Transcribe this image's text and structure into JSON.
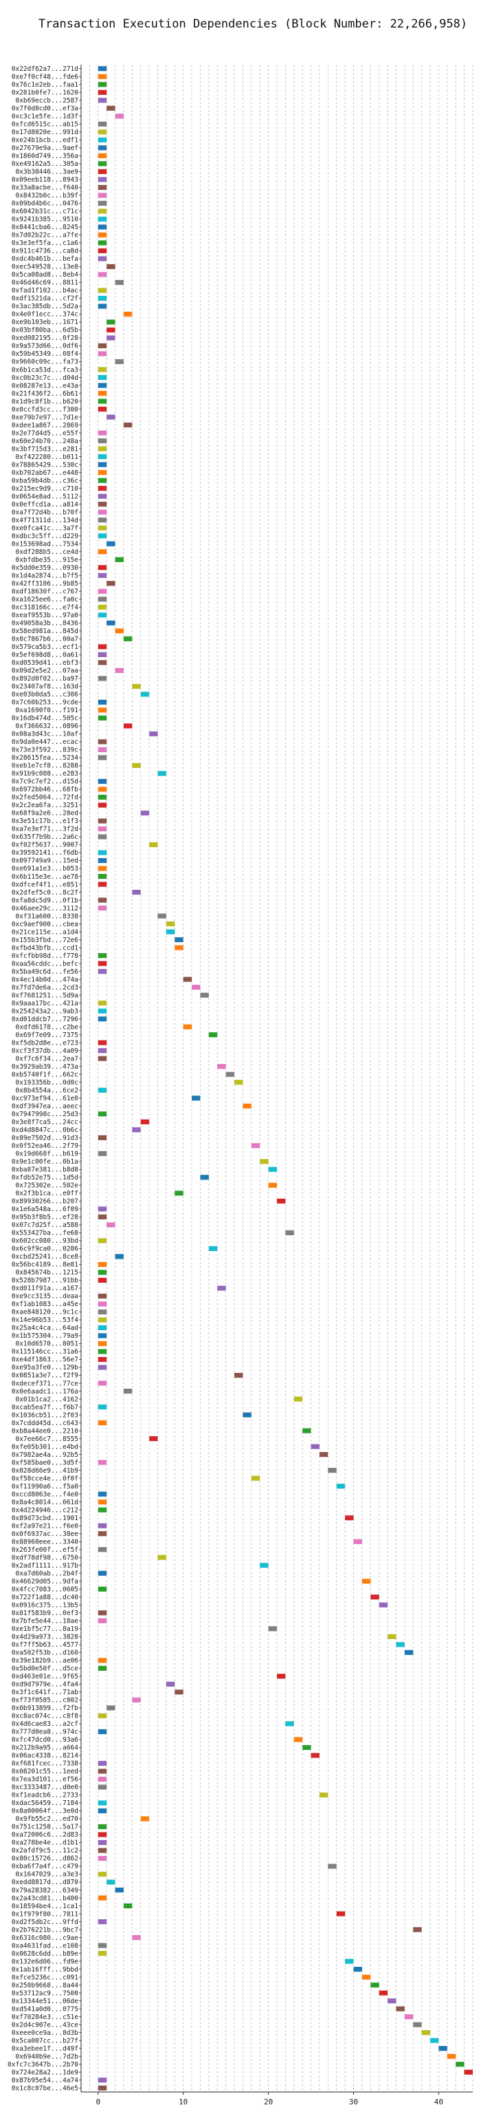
{
  "chart_data": {
    "type": "bar",
    "title": "Transaction Execution Dependencies (Block Number: 22,266,958)",
    "xlabel": "",
    "ylabel": "",
    "xlim": [
      -2,
      44
    ],
    "xticks": [
      0,
      10,
      20,
      30,
      40
    ],
    "grid": true,
    "bar_length": 1,
    "palette": [
      "#1f77b4",
      "#ff7f0e",
      "#2ca02c",
      "#d62728",
      "#9467bd",
      "#8c564b",
      "#e377c2",
      "#7f7f7f",
      "#bcbd22",
      "#17becf"
    ],
    "transactions": [
      {
        "hash": "0x22df62a7...271d",
        "start": 0
      },
      {
        "hash": "0xe7f0cf48...fde6",
        "start": 0
      },
      {
        "hash": "0x76c1e2eb...faa1",
        "start": 0
      },
      {
        "hash": "0x281b0fe7...1620",
        "start": 0
      },
      {
        "hash": "0xb69eccb...2587",
        "start": 0
      },
      {
        "hash": "0x7f0d0cd0...ef3a",
        "start": 1
      },
      {
        "hash": "0xc3c1e5fe...1d3f",
        "start": 2
      },
      {
        "hash": "0xfcd6515c...ab15",
        "start": 0
      },
      {
        "hash": "0x17d8020e...991d",
        "start": 0
      },
      {
        "hash": "0xe24b1bcb...edf1",
        "start": 0
      },
      {
        "hash": "0x27679e9a...9aef",
        "start": 0
      },
      {
        "hash": "0x1860d749...356a",
        "start": 0
      },
      {
        "hash": "0xe49162a5...305a",
        "start": 0
      },
      {
        "hash": "0x3b38446...3ae9",
        "start": 0
      },
      {
        "hash": "0x09eeb118...8943",
        "start": 0
      },
      {
        "hash": "0x33a8acbe...f640",
        "start": 0
      },
      {
        "hash": "0x8432b0c...b39f",
        "start": 0
      },
      {
        "hash": "0x09bd4b6c...0476",
        "start": 0
      },
      {
        "hash": "0x6042b31c...c71c",
        "start": 0
      },
      {
        "hash": "0x9241b385...9510",
        "start": 0
      },
      {
        "hash": "0x8441cba6...8245",
        "start": 0
      },
      {
        "hash": "0x7d02b22c...a7fe",
        "start": 0
      },
      {
        "hash": "0x3e3ef5fa...c1a6",
        "start": 0
      },
      {
        "hash": "0x911c4736...ca8d",
        "start": 0
      },
      {
        "hash": "0xdc4b461b...befa",
        "start": 0
      },
      {
        "hash": "0xec549528...13e8",
        "start": 1
      },
      {
        "hash": "0x5ca08ad8...8eb4",
        "start": 0
      },
      {
        "hash": "0x46d46c69...8811",
        "start": 2
      },
      {
        "hash": "0xfad1f102...b4ac",
        "start": 0
      },
      {
        "hash": "0xdf1521da...cf2f",
        "start": 0
      },
      {
        "hash": "0x3ac385db...5d2a",
        "start": 0
      },
      {
        "hash": "0x4e0f1ecc...374c",
        "start": 3
      },
      {
        "hash": "0xe9b103eb...1671",
        "start": 1
      },
      {
        "hash": "0x03bf80ba...6d5b",
        "start": 1
      },
      {
        "hash": "0xed082195...0f28",
        "start": 1
      },
      {
        "hash": "0x9a573d66...0df6",
        "start": 0
      },
      {
        "hash": "0x59b45349...08f4",
        "start": 0
      },
      {
        "hash": "0x9660c09c...fa73",
        "start": 2
      },
      {
        "hash": "0x6b1ca53d...fca3",
        "start": 0
      },
      {
        "hash": "0xc0b23c7c...d04d",
        "start": 0
      },
      {
        "hash": "0x08287e13...e43a",
        "start": 0
      },
      {
        "hash": "0x21f436f2...6b61",
        "start": 0
      },
      {
        "hash": "0x1d9c8f1b...b620",
        "start": 0
      },
      {
        "hash": "0x0ccfd3cc...f300",
        "start": 0
      },
      {
        "hash": "0xe79b7e97...7d1e",
        "start": 1
      },
      {
        "hash": "0xdee1a867...2869",
        "start": 3
      },
      {
        "hash": "0x2e77d4d5...e55f",
        "start": 0
      },
      {
        "hash": "0x60e24b70...248a",
        "start": 0
      },
      {
        "hash": "0x3bf715d3...e281",
        "start": 0
      },
      {
        "hash": "0xf422280...b011",
        "start": 0
      },
      {
        "hash": "0x78865429...530c",
        "start": 0
      },
      {
        "hash": "0xb702ab67...e448",
        "start": 0
      },
      {
        "hash": "0xba59b4db...c36c",
        "start": 0
      },
      {
        "hash": "0x215ec9d9...c710",
        "start": 0
      },
      {
        "hash": "0x0654e8ad...5112",
        "start": 0
      },
      {
        "hash": "0x0effcd1a...a814",
        "start": 0
      },
      {
        "hash": "0xa7f72d4b...b70f",
        "start": 0
      },
      {
        "hash": "0x4f71311d...134d",
        "start": 0
      },
      {
        "hash": "0xe0fca41c...3a7f",
        "start": 0
      },
      {
        "hash": "0xdbc3c5ff...d229",
        "start": 0
      },
      {
        "hash": "0x153698ad...7534",
        "start": 1
      },
      {
        "hash": "0xdf288b5...ce4d",
        "start": 0
      },
      {
        "hash": "0xbfdbe35...915e",
        "start": 2
      },
      {
        "hash": "0x5dd0e359...0930",
        "start": 0
      },
      {
        "hash": "0x1d4a2874...b7f5",
        "start": 0
      },
      {
        "hash": "0x42ff3106...9b85",
        "start": 1
      },
      {
        "hash": "0xdf18630f...c767",
        "start": 0
      },
      {
        "hash": "0xa1625ee6...fa0c",
        "start": 0
      },
      {
        "hash": "0xc318166c...e7f4",
        "start": 0
      },
      {
        "hash": "0xeaf9553b...97a0",
        "start": 0
      },
      {
        "hash": "0x49058a3b...8436",
        "start": 1
      },
      {
        "hash": "0x58ed981a...845d",
        "start": 2
      },
      {
        "hash": "0x0c7867b6...00a7",
        "start": 3
      },
      {
        "hash": "0x579ca5b3...ecf1",
        "start": 0
      },
      {
        "hash": "0x5ef698d8...0a61",
        "start": 0
      },
      {
        "hash": "0xd0539d41...ebf3",
        "start": 0
      },
      {
        "hash": "0x09d2e5e2...07aa",
        "start": 2
      },
      {
        "hash": "0x892d0f02...ba97",
        "start": 0
      },
      {
        "hash": "0x23407af8...163d",
        "start": 4
      },
      {
        "hash": "0xe03b0da5...c306",
        "start": 5
      },
      {
        "hash": "0x7c60b253...9cde",
        "start": 0
      },
      {
        "hash": "0xa1690f0...f191",
        "start": 0
      },
      {
        "hash": "0x16db474d...505c",
        "start": 0
      },
      {
        "hash": "0xf366632...0896",
        "start": 3
      },
      {
        "hash": "0x08a3d43c...10af",
        "start": 6
      },
      {
        "hash": "0x9da0e447...ecac",
        "start": 0
      },
      {
        "hash": "0x73e3f592...839c",
        "start": 0
      },
      {
        "hash": "0x28615fea...5234",
        "start": 0
      },
      {
        "hash": "0xeb1e7cf8...8288",
        "start": 4
      },
      {
        "hash": "0x91b9c088...e283",
        "start": 7
      },
      {
        "hash": "0x7c9c7ef2...d15d",
        "start": 0
      },
      {
        "hash": "0x6972bb46...68fb",
        "start": 0
      },
      {
        "hash": "0x2fed5064...72fd",
        "start": 0
      },
      {
        "hash": "0x2c2ea6fa...3251",
        "start": 0
      },
      {
        "hash": "0x68f9a2e6...28ed",
        "start": 5
      },
      {
        "hash": "0x3e51c17b...e1f3",
        "start": 0
      },
      {
        "hash": "0xa7e3ef71...3f2d",
        "start": 0
      },
      {
        "hash": "0x635f7b9b...2a6c",
        "start": 0
      },
      {
        "hash": "0xf02f5637...9007",
        "start": 6
      },
      {
        "hash": "0x39592141...f6db",
        "start": 0
      },
      {
        "hash": "0x097749a9...15ed",
        "start": 0
      },
      {
        "hash": "0xe691a1e3...b053",
        "start": 0
      },
      {
        "hash": "0x6b115e3e...ae78",
        "start": 0
      },
      {
        "hash": "0xdfcef4f1...e851",
        "start": 0
      },
      {
        "hash": "0x2dfef5c0...8c2f",
        "start": 4
      },
      {
        "hash": "0xfa8dc5d9...0f1b",
        "start": 0
      },
      {
        "hash": "0x46aee29c...3112",
        "start": 0
      },
      {
        "hash": "0xf31a600...8338",
        "start": 7
      },
      {
        "hash": "0xc9aef900...cbea",
        "start": 8
      },
      {
        "hash": "0x21ce115e...a1d4",
        "start": 8
      },
      {
        "hash": "0x155b3fbd...72e6",
        "start": 9
      },
      {
        "hash": "0xfbd43bfb...ccd1",
        "start": 9
      },
      {
        "hash": "0xfcfbb98d...f778",
        "start": 0
      },
      {
        "hash": "0xaa56cddc...befc",
        "start": 0
      },
      {
        "hash": "0x5ba49c6d...fe56",
        "start": 0
      },
      {
        "hash": "0x4ec14b0d...474a",
        "start": 10
      },
      {
        "hash": "0x7fd7de6a...2cd3",
        "start": 11
      },
      {
        "hash": "0xf7681251...5d9a",
        "start": 12
      },
      {
        "hash": "0x9aaa17bc...421a",
        "start": 0
      },
      {
        "hash": "0x254243a2...9ab3",
        "start": 0
      },
      {
        "hash": "0xd01ddcb7...7296",
        "start": 0
      },
      {
        "hash": "0xdfd6178...c2be",
        "start": 10
      },
      {
        "hash": "0x69f7e09...7375",
        "start": 13
      },
      {
        "hash": "0xf5db2d8e...e723",
        "start": 0
      },
      {
        "hash": "0xcf3f37db...4a09",
        "start": 0
      },
      {
        "hash": "0xf7c6f34...2ea7",
        "start": 0
      },
      {
        "hash": "0x3929ab39...473a",
        "start": 14
      },
      {
        "hash": "0xb5740f1f...662c",
        "start": 15
      },
      {
        "hash": "0x193356b...0d0c",
        "start": 16
      },
      {
        "hash": "0x8b4554a...6ce2",
        "start": 0
      },
      {
        "hash": "0xc973ef94...61e0",
        "start": 11
      },
      {
        "hash": "0xdf3947ea...aeec",
        "start": 17
      },
      {
        "hash": "0x7947998c...25d3",
        "start": 0
      },
      {
        "hash": "0x3e8f7ca5...24cc",
        "start": 5
      },
      {
        "hash": "0xd4d8847c...0b6c",
        "start": 4
      },
      {
        "hash": "0x89e7502d...91d3",
        "start": 0
      },
      {
        "hash": "0x0f52ea46...2f79",
        "start": 18
      },
      {
        "hash": "0x19d668f...b619",
        "start": 0
      },
      {
        "hash": "0x9e1c00fe...0b1a",
        "start": 19
      },
      {
        "hash": "0xba87e381...b8d8",
        "start": 20
      },
      {
        "hash": "0xfdb52e75...1d5d",
        "start": 12
      },
      {
        "hash": "0x725302e...502e",
        "start": 20
      },
      {
        "hash": "0x2f3b1ca...e0ff",
        "start": 9
      },
      {
        "hash": "0x89930266...b207",
        "start": 21
      },
      {
        "hash": "0x1e6a548a...6f09",
        "start": 0
      },
      {
        "hash": "0x95b3f8b5...ef28",
        "start": 0
      },
      {
        "hash": "0x07c7d25f...a588",
        "start": 1
      },
      {
        "hash": "0x553427ba...fe68",
        "start": 22
      },
      {
        "hash": "0x602cc080...93bd",
        "start": 0
      },
      {
        "hash": "0x6c9f9ca0...0286",
        "start": 13
      },
      {
        "hash": "0xcbd25241...8ce8",
        "start": 2
      },
      {
        "hash": "0x56bc4189...8e81",
        "start": 0
      },
      {
        "hash": "0x845674b...1215",
        "start": 0
      },
      {
        "hash": "0x528b7987...91bb",
        "start": 0
      },
      {
        "hash": "0xd011f91a...a167",
        "start": 14
      },
      {
        "hash": "0xe9cc3135...deaa",
        "start": 0
      },
      {
        "hash": "0xf1ab1083...a45e",
        "start": 0
      },
      {
        "hash": "0xae848120...9c1c",
        "start": 0
      },
      {
        "hash": "0x14e96b53...53f4",
        "start": 0
      },
      {
        "hash": "0x25a4c4ca...64ad",
        "start": 0
      },
      {
        "hash": "0x1b575304...79a9",
        "start": 0
      },
      {
        "hash": "0x10d6570...8051",
        "start": 0
      },
      {
        "hash": "0x115146cc...31a6",
        "start": 0
      },
      {
        "hash": "0xe4df1863...56e7",
        "start": 0
      },
      {
        "hash": "0xe95a3fe0...129b",
        "start": 0
      },
      {
        "hash": "0x0851a3e7...f2f9",
        "start": 16
      },
      {
        "hash": "0xdecef371...77ce",
        "start": 0
      },
      {
        "hash": "0x0e6aadc1...176a",
        "start": 3
      },
      {
        "hash": "0x01b1ca2...4162",
        "start": 23
      },
      {
        "hash": "0xcab5ea7f...f6b7",
        "start": 0
      },
      {
        "hash": "0x1036cb51...2f03",
        "start": 17
      },
      {
        "hash": "0x7cddd45d...c643",
        "start": 0
      },
      {
        "hash": "0xb8a44ee0...2210",
        "start": 24
      },
      {
        "hash": "0x7ee66c7...8555",
        "start": 6
      },
      {
        "hash": "0xfe05b301...e4bd",
        "start": 25
      },
      {
        "hash": "0x7982ae4a...92b5",
        "start": 26
      },
      {
        "hash": "0xf585bae0...3d5f",
        "start": 0
      },
      {
        "hash": "0x028d66e9...41b9",
        "start": 27
      },
      {
        "hash": "0xf58cce4e...0f0f",
        "start": 18
      },
      {
        "hash": "0xf11990a6...f5a0",
        "start": 28
      },
      {
        "hash": "0xccd8063e...f4e0",
        "start": 0
      },
      {
        "hash": "0x8a4c8014...061d",
        "start": 0
      },
      {
        "hash": "0x4d224946...c212",
        "start": 0
      },
      {
        "hash": "0x89d73cbd...1901",
        "start": 29
      },
      {
        "hash": "0xf2a97e21...f6e0",
        "start": 0
      },
      {
        "hash": "0x0f6937ac...38ee",
        "start": 0
      },
      {
        "hash": "0x88960eee...3340",
        "start": 30
      },
      {
        "hash": "0x263fe00f...ef5f",
        "start": 0
      },
      {
        "hash": "0xdf78df98...6750",
        "start": 7
      },
      {
        "hash": "0x2adf1111...917b",
        "start": 19
      },
      {
        "hash": "0xa7d60ab...2b4f",
        "start": 0
      },
      {
        "hash": "0x46629d05...9dfa",
        "start": 31
      },
      {
        "hash": "0x4fcc7083...0605",
        "start": 0
      },
      {
        "hash": "0x722f1a88...dc40",
        "start": 32
      },
      {
        "hash": "0x0916c375...13b5",
        "start": 33
      },
      {
        "hash": "0x81f583b9...0ef3",
        "start": 0
      },
      {
        "hash": "0x7bfe5e44...18ae",
        "start": 0
      },
      {
        "hash": "0xe1bf5c77...8a19",
        "start": 20
      },
      {
        "hash": "0x4d29a973...3828",
        "start": 34
      },
      {
        "hash": "0xf7ff5b63...4577",
        "start": 35
      },
      {
        "hash": "0xa502f53b...d160",
        "start": 36
      },
      {
        "hash": "0x39e182b9...ae06",
        "start": 0
      },
      {
        "hash": "0x5bd0e50f...d5ce",
        "start": 0
      },
      {
        "hash": "0xd463e01e...9f65",
        "start": 21
      },
      {
        "hash": "0xd9d7979e...4fa4",
        "start": 8
      },
      {
        "hash": "0x3f1c641f...71ab",
        "start": 9
      },
      {
        "hash": "0xf73f0585...c802",
        "start": 4
      },
      {
        "hash": "0x0b913899...f2fb",
        "start": 1
      },
      {
        "hash": "0xc8ac074c...c8f8",
        "start": 0
      },
      {
        "hash": "0x4d6cae83...a2cf",
        "start": 22
      },
      {
        "hash": "0x777d0ea8...974c",
        "start": 0
      },
      {
        "hash": "0xfc47dcd0...93a6",
        "start": 23
      },
      {
        "hash": "0x212b9a95...a664",
        "start": 24
      },
      {
        "hash": "0x06ac4338...8214",
        "start": 25
      },
      {
        "hash": "0xf681fcec...7338",
        "start": 0
      },
      {
        "hash": "0x08201c55...1eed",
        "start": 0
      },
      {
        "hash": "0x7ea3d101...ef56",
        "start": 0
      },
      {
        "hash": "0xc3333487...d0e0",
        "start": 0
      },
      {
        "hash": "0xf1eadcb6...2733",
        "start": 26
      },
      {
        "hash": "0xdac56459...7184",
        "start": 0
      },
      {
        "hash": "0x8a00064f...3e0d",
        "start": 0
      },
      {
        "hash": "0x9fb55c2...ed70",
        "start": 5
      },
      {
        "hash": "0x751c1258...5a17",
        "start": 0
      },
      {
        "hash": "0xa72006c6...2d83",
        "start": 0
      },
      {
        "hash": "0xa278be4e...d1b1",
        "start": 0
      },
      {
        "hash": "0x2afdf9c5...11c2",
        "start": 0
      },
      {
        "hash": "0x80c15726...d862",
        "start": 0
      },
      {
        "hash": "0xba6f7a4f...c479",
        "start": 27
      },
      {
        "hash": "0x1647029...a3e3",
        "start": 0
      },
      {
        "hash": "0xedd8817d...d870",
        "start": 1
      },
      {
        "hash": "0x79a28382...6349",
        "start": 2
      },
      {
        "hash": "0x2a43cd81...b400",
        "start": 0
      },
      {
        "hash": "0x18594be4...1ca1",
        "start": 3
      },
      {
        "hash": "0x1f979f80...7811",
        "start": 28
      },
      {
        "hash": "0xd2f5db2c...9ffd",
        "start": 0
      },
      {
        "hash": "0x2b76221b...9bc7",
        "start": 37
      },
      {
        "hash": "0x6316c080...c9ae",
        "start": 4
      },
      {
        "hash": "0xa4631fad...e108",
        "start": 0
      },
      {
        "hash": "0x0628c6dd...b89e",
        "start": 0
      },
      {
        "hash": "0x132e6d06...fd9e",
        "start": 29
      },
      {
        "hash": "0x1ab16fff...9bbd",
        "start": 30
      },
      {
        "hash": "0xfce5236c...c091",
        "start": 31
      },
      {
        "hash": "0x250b9668...8a44",
        "start": 32
      },
      {
        "hash": "0x53712ac9...7500",
        "start": 33
      },
      {
        "hash": "0x13344e51...06de",
        "start": 34
      },
      {
        "hash": "0xd541a0d0...0775",
        "start": 35
      },
      {
        "hash": "0xf70284e3...c51e",
        "start": 36
      },
      {
        "hash": "0x2d4c907e...43ce",
        "start": 37
      },
      {
        "hash": "0xeee0ce9a...8d3b",
        "start": 38
      },
      {
        "hash": "0x5ca007cc...b27f",
        "start": 39
      },
      {
        "hash": "0xa3ebee1f...d49f",
        "start": 40
      },
      {
        "hash": "0x6940b9e...7d2b",
        "start": 41
      },
      {
        "hash": "0xfc7c3647b...2b70",
        "start": 42
      },
      {
        "hash": "0x724e28a2...1de9",
        "start": 43
      },
      {
        "hash": "0x87b95e54...4a74",
        "start": 0
      },
      {
        "hash": "0x1c8c07be...46e5",
        "start": 0
      }
    ]
  }
}
